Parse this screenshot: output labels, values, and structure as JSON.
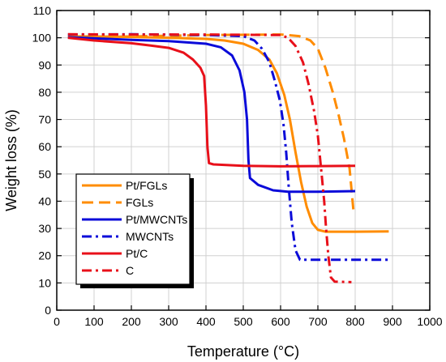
{
  "chart_data": {
    "type": "line",
    "title": "",
    "xlabel": "Temperature (°C)",
    "ylabel": "Weight loss (%)",
    "xlim": [
      0,
      1000
    ],
    "ylim": [
      0,
      110
    ],
    "x_ticks": [
      0,
      100,
      200,
      300,
      400,
      500,
      600,
      700,
      800,
      900,
      1000
    ],
    "y_ticks": [
      0,
      10,
      20,
      30,
      40,
      50,
      60,
      70,
      80,
      90,
      100,
      110
    ],
    "grid": true,
    "legend_position": "bottom-left",
    "series": [
      {
        "name": "Pt/FGLs",
        "color": "#ff8c00",
        "dash": "solid",
        "points": [
          [
            30,
            100.5
          ],
          [
            100,
            100.5
          ],
          [
            200,
            100.3
          ],
          [
            300,
            100
          ],
          [
            400,
            99.6
          ],
          [
            450,
            99
          ],
          [
            500,
            97.8
          ],
          [
            540,
            95.5
          ],
          [
            570,
            92
          ],
          [
            590,
            87
          ],
          [
            610,
            79
          ],
          [
            625,
            70
          ],
          [
            640,
            58
          ],
          [
            655,
            47
          ],
          [
            670,
            38
          ],
          [
            685,
            32
          ],
          [
            700,
            29.5
          ],
          [
            720,
            28.8
          ],
          [
            800,
            28.8
          ],
          [
            890,
            28.9
          ]
        ]
      },
      {
        "name": "FGLs",
        "color": "#ff8c00",
        "dash": "dash",
        "points": [
          [
            30,
            100.2
          ],
          [
            200,
            100.5
          ],
          [
            400,
            101
          ],
          [
            600,
            101.2
          ],
          [
            650,
            100.6
          ],
          [
            680,
            99
          ],
          [
            700,
            96
          ],
          [
            720,
            89
          ],
          [
            740,
            80
          ],
          [
            755,
            72
          ],
          [
            770,
            63
          ],
          [
            785,
            52
          ],
          [
            795,
            37
          ]
        ]
      },
      {
        "name": "Pt/MWCNTs",
        "color": "#0b0bd9",
        "dash": "solid",
        "points": [
          [
            30,
            100.2
          ],
          [
            100,
            99.8
          ],
          [
            200,
            99.2
          ],
          [
            300,
            98.8
          ],
          [
            400,
            97.8
          ],
          [
            440,
            96.5
          ],
          [
            470,
            93.5
          ],
          [
            490,
            88
          ],
          [
            503,
            80
          ],
          [
            510,
            70
          ],
          [
            514,
            55
          ],
          [
            518,
            48.5
          ],
          [
            540,
            46
          ],
          [
            580,
            44
          ],
          [
            620,
            43.5
          ],
          [
            700,
            43.5
          ],
          [
            800,
            43.7
          ]
        ]
      },
      {
        "name": "MWCNTs",
        "color": "#0b0bd9",
        "dash": "dashdot",
        "points": [
          [
            30,
            101.2
          ],
          [
            200,
            101.3
          ],
          [
            400,
            101
          ],
          [
            500,
            100.6
          ],
          [
            530,
            99
          ],
          [
            550,
            96
          ],
          [
            570,
            91
          ],
          [
            585,
            84
          ],
          [
            598,
            77
          ],
          [
            608,
            68
          ],
          [
            615,
            58
          ],
          [
            622,
            45
          ],
          [
            630,
            32
          ],
          [
            640,
            22
          ],
          [
            652,
            18.5
          ],
          [
            700,
            18.5
          ],
          [
            800,
            18.5
          ],
          [
            890,
            18.5
          ]
        ]
      },
      {
        "name": "Pt/C",
        "color": "#e8101a",
        "dash": "solid",
        "points": [
          [
            30,
            100
          ],
          [
            100,
            99
          ],
          [
            200,
            98
          ],
          [
            250,
            97.2
          ],
          [
            300,
            96.3
          ],
          [
            340,
            94.5
          ],
          [
            365,
            92
          ],
          [
            385,
            89
          ],
          [
            395,
            86
          ],
          [
            400,
            75
          ],
          [
            404,
            60
          ],
          [
            408,
            54
          ],
          [
            420,
            53.5
          ],
          [
            500,
            53
          ],
          [
            600,
            52.8
          ],
          [
            700,
            52.9
          ],
          [
            800,
            53
          ]
        ]
      },
      {
        "name": "C",
        "color": "#e8101a",
        "dash": "dashdot",
        "points": [
          [
            30,
            101.3
          ],
          [
            200,
            101.2
          ],
          [
            400,
            101.2
          ],
          [
            600,
            101
          ],
          [
            620,
            100
          ],
          [
            640,
            97
          ],
          [
            660,
            91
          ],
          [
            675,
            83
          ],
          [
            690,
            73
          ],
          [
            700,
            64
          ],
          [
            710,
            50
          ],
          [
            717,
            40
          ],
          [
            722,
            30
          ],
          [
            728,
            20
          ],
          [
            735,
            12
          ],
          [
            745,
            10.5
          ],
          [
            790,
            10.3
          ]
        ]
      }
    ]
  }
}
